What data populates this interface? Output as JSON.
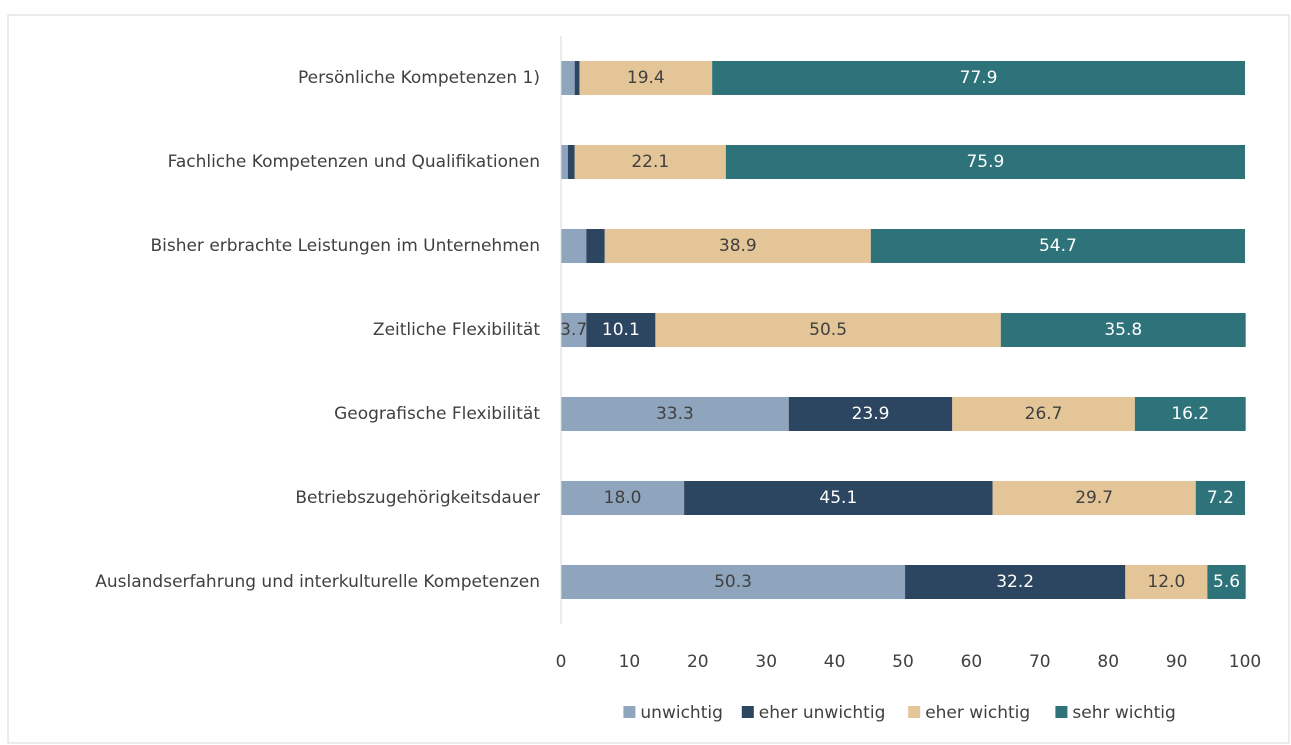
{
  "chart_data": {
    "type": "stacked_bar_horizontal",
    "categories": [
      "Persönliche Kompetenzen 1)",
      "Fachliche Kompetenzen und Qualifikationen",
      "Bisher erbrachte Leistungen im Unternehmen",
      "Zeitliche Flexibilität",
      "Geografische Flexibilität",
      "Betriebszugehörigkeitsdauer",
      "Auslandserfahrung und interkulturelle Kompetenzen"
    ],
    "series": [
      {
        "name": "unwichtig",
        "color": "#8fa5bd",
        "values": [
          2.0,
          1.0,
          3.7,
          3.7,
          33.3,
          18.0,
          50.3
        ],
        "value_labels": [
          null,
          null,
          null,
          "3.7",
          "33.3",
          "18.0",
          "50.3"
        ]
      },
      {
        "name": "eher unwichtig",
        "color": "#2c4661",
        "values": [
          0.7,
          1.0,
          2.7,
          10.1,
          23.9,
          45.1,
          32.2
        ],
        "value_labels": [
          null,
          null,
          null,
          "10.1",
          "23.9",
          "45.1",
          "32.2"
        ]
      },
      {
        "name": "eher wichtig",
        "color": "#e3c597",
        "values": [
          19.4,
          22.1,
          38.9,
          50.5,
          26.7,
          29.7,
          12.0
        ],
        "value_labels": [
          "19.4",
          "22.1",
          "38.9",
          "50.5",
          "26.7",
          "29.7",
          "12.0"
        ]
      },
      {
        "name": "sehr wichtig",
        "color": "#2e737a",
        "values": [
          77.9,
          75.9,
          54.7,
          35.8,
          16.2,
          7.2,
          5.6
        ],
        "value_labels": [
          "77.9",
          "75.9",
          "54.7",
          "35.8",
          "16.2",
          "7.2",
          "5.6"
        ]
      }
    ],
    "xlim": [
      0,
      100
    ],
    "xticks": [
      0,
      10,
      20,
      30,
      40,
      50,
      60,
      70,
      80,
      90,
      100
    ],
    "legend": "bottom"
  }
}
